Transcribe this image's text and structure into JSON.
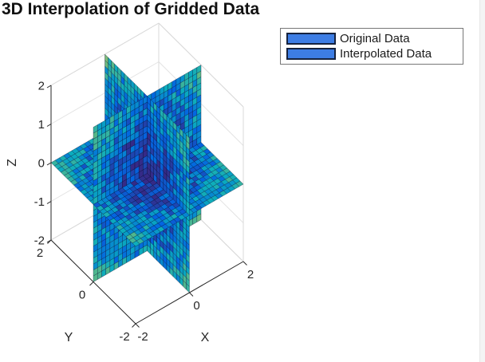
{
  "title": "3D Interpolation of Gridded Data",
  "legend": {
    "items": [
      {
        "label": "Original Data",
        "swatch_color": "#3d7de4",
        "swatch_border": "#16233f"
      },
      {
        "label": "Interpolated Data",
        "swatch_color": "#3d7de4",
        "swatch_border": "#16233f"
      }
    ],
    "border_color": "#777777"
  },
  "axes": {
    "x": {
      "label": "X"
    },
    "y": {
      "label": "Y"
    },
    "z": {
      "label": "Z"
    }
  },
  "chart_data": {
    "type": "3d-slice-surface",
    "title": "3D Interpolation of Gridded Data",
    "xlabel": "X",
    "ylabel": "Y",
    "zlabel": "Z",
    "xlim": [
      -2,
      2
    ],
    "ylim": [
      -2,
      2
    ],
    "zlim": [
      -2,
      2
    ],
    "x_ticks": [
      -2,
      0,
      2
    ],
    "y_ticks": [
      2,
      0,
      -2
    ],
    "z_ticks": [
      2,
      1,
      0,
      -1,
      -2
    ],
    "slice_planes": [
      {
        "axis": "x",
        "value": 0
      },
      {
        "axis": "y",
        "value": 0
      },
      {
        "axis": "z",
        "value": 0
      }
    ],
    "colormap": "parula",
    "view": {
      "azimuth": -37.5,
      "elevation": 30
    },
    "grid": true,
    "mesh_cells_per_side": 26,
    "legend_entries": [
      "Original Data",
      "Interpolated Data"
    ],
    "colors": {
      "axis": "#262626",
      "tick_label": "#262626",
      "grid_line": "#e3e3e3",
      "box_edge": "#d9d9d9",
      "mesh_edge": "rgba(8,14,50,0.6)"
    }
  }
}
